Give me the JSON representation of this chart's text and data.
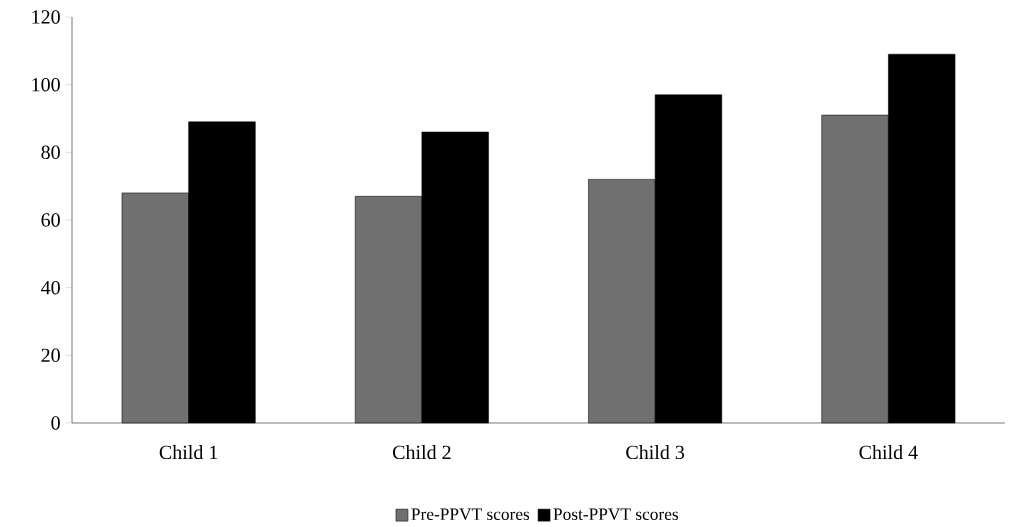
{
  "chart_data": {
    "type": "bar",
    "categories": [
      "Child 1",
      "Child 2",
      "Child 3",
      "Child 4"
    ],
    "series": [
      {
        "name": "Pre-PPVT scores",
        "color": "#707070",
        "values": [
          68,
          67,
          72,
          91
        ]
      },
      {
        "name": "Post-PPVT scores",
        "color": "#000000",
        "values": [
          89,
          86,
          97,
          109
        ]
      }
    ],
    "ylim": [
      0,
      120
    ],
    "yticks": [
      0,
      20,
      40,
      60,
      80,
      100,
      120
    ],
    "legend": "bottom"
  }
}
